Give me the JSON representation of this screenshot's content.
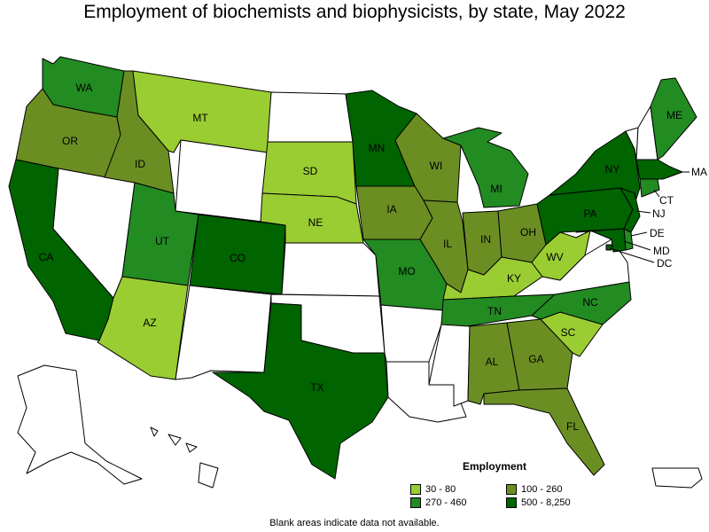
{
  "title": "Employment of biochemists and biophysicists, by state, May 2022",
  "note": "Blank areas indicate data not available.",
  "legend": {
    "title": "Employment",
    "items": [
      {
        "label": "30 - 80",
        "color": "#9acd32"
      },
      {
        "label": "100 - 260",
        "color": "#6b8e23"
      },
      {
        "label": "270 - 460",
        "color": "#228b22"
      },
      {
        "label": "500 - 8,250",
        "color": "#006400"
      }
    ]
  },
  "colors": {
    "c1": "#9acd32",
    "c2": "#6b8e23",
    "c3": "#228b22",
    "c4": "#006400",
    "none": "#ffffff"
  },
  "states": [
    {
      "code": "WA",
      "label": "WA",
      "class": "c3"
    },
    {
      "code": "OR",
      "label": "OR",
      "class": "c2"
    },
    {
      "code": "CA",
      "label": "CA",
      "class": "c4"
    },
    {
      "code": "NV",
      "label": "",
      "class": "none"
    },
    {
      "code": "ID",
      "label": "ID",
      "class": "c2"
    },
    {
      "code": "MT",
      "label": "MT",
      "class": "c1"
    },
    {
      "code": "WY",
      "label": "",
      "class": "none"
    },
    {
      "code": "UT",
      "label": "UT",
      "class": "c3"
    },
    {
      "code": "AZ",
      "label": "AZ",
      "class": "c1"
    },
    {
      "code": "CO",
      "label": "CO",
      "class": "c4"
    },
    {
      "code": "NM",
      "label": "",
      "class": "none"
    },
    {
      "code": "ND",
      "label": "",
      "class": "none"
    },
    {
      "code": "SD",
      "label": "SD",
      "class": "c1"
    },
    {
      "code": "NE",
      "label": "NE",
      "class": "c1"
    },
    {
      "code": "KS",
      "label": "",
      "class": "none"
    },
    {
      "code": "OK",
      "label": "",
      "class": "none"
    },
    {
      "code": "TX",
      "label": "TX",
      "class": "c4"
    },
    {
      "code": "MN",
      "label": "MN",
      "class": "c4"
    },
    {
      "code": "IA",
      "label": "IA",
      "class": "c2"
    },
    {
      "code": "MO",
      "label": "MO",
      "class": "c3"
    },
    {
      "code": "AR",
      "label": "",
      "class": "none"
    },
    {
      "code": "LA",
      "label": "",
      "class": "none"
    },
    {
      "code": "WI",
      "label": "WI",
      "class": "c2"
    },
    {
      "code": "IL",
      "label": "IL",
      "class": "c2"
    },
    {
      "code": "MI",
      "label": "MI",
      "class": "c3"
    },
    {
      "code": "IN",
      "label": "IN",
      "class": "c2"
    },
    {
      "code": "OH",
      "label": "OH",
      "class": "c2"
    },
    {
      "code": "KY",
      "label": "KY",
      "class": "c1"
    },
    {
      "code": "TN",
      "label": "TN",
      "class": "c3"
    },
    {
      "code": "MS",
      "label": "",
      "class": "none"
    },
    {
      "code": "AL",
      "label": "AL",
      "class": "c2"
    },
    {
      "code": "GA",
      "label": "GA",
      "class": "c2"
    },
    {
      "code": "FL",
      "label": "FL",
      "class": "c2"
    },
    {
      "code": "SC",
      "label": "SC",
      "class": "c1"
    },
    {
      "code": "NC",
      "label": "NC",
      "class": "c3"
    },
    {
      "code": "VA",
      "label": "",
      "class": "none"
    },
    {
      "code": "WV",
      "label": "WV",
      "class": "c1"
    },
    {
      "code": "PA",
      "label": "PA",
      "class": "c4"
    },
    {
      "code": "NY",
      "label": "NY",
      "class": "c4"
    },
    {
      "code": "VT",
      "label": "",
      "class": "none"
    },
    {
      "code": "NH",
      "label": "",
      "class": "none"
    },
    {
      "code": "ME",
      "label": "ME",
      "class": "c3"
    },
    {
      "code": "MA",
      "label": "MA",
      "class": "c4"
    },
    {
      "code": "CT",
      "label": "CT",
      "class": "c3"
    },
    {
      "code": "NJ",
      "label": "NJ",
      "class": "c4"
    },
    {
      "code": "DE",
      "label": "DE",
      "class": "c3"
    },
    {
      "code": "MD",
      "label": "MD",
      "class": "c4"
    },
    {
      "code": "DC",
      "label": "DC",
      "class": "c4"
    },
    {
      "code": "AK",
      "label": "",
      "class": "none"
    },
    {
      "code": "HI",
      "label": "",
      "class": "none"
    },
    {
      "code": "PR",
      "label": "",
      "class": "none"
    }
  ]
}
